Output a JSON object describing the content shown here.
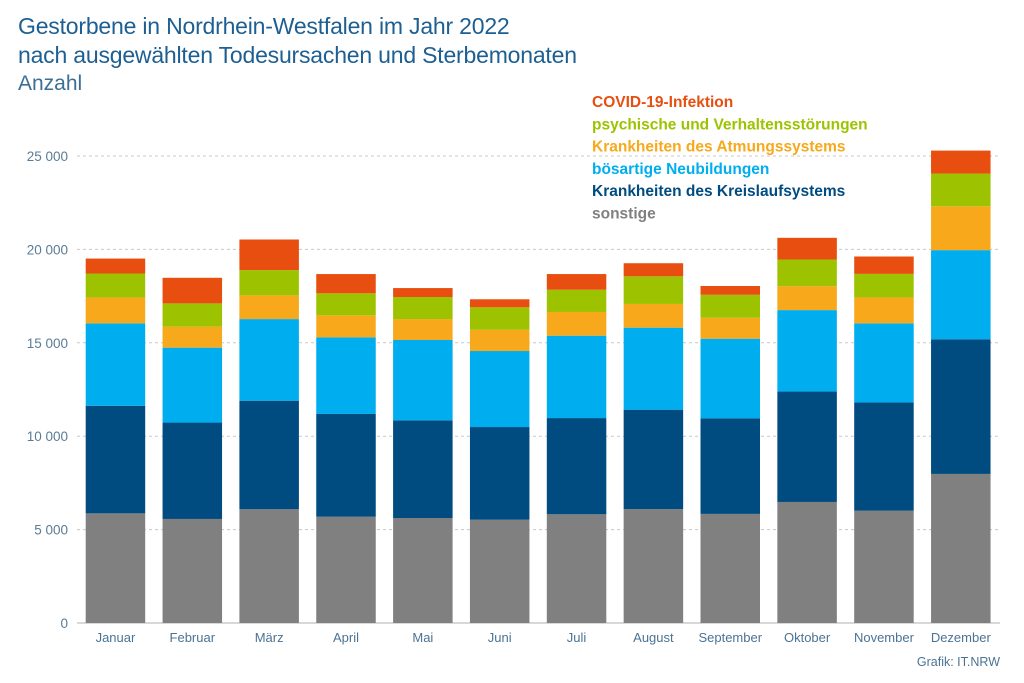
{
  "chart_data": {
    "type": "bar",
    "stacked": true,
    "title": "Gestorbene in Nordrhein-Westfalen im Jahr 2022",
    "title_line2": "nach ausgewählten Todesursachen und Sterbemonaten",
    "subtitle": "Anzahl",
    "xlabel": "",
    "ylabel": "Anzahl",
    "ylim": [
      0,
      25000
    ],
    "yticks": [
      0,
      5000,
      10000,
      15000,
      20000,
      25000
    ],
    "ytick_labels": [
      "0",
      "5 000",
      "10 000",
      "15 000",
      "20 000",
      "25 000"
    ],
    "grid": true,
    "legend_position": "top-right",
    "categories": [
      "Januar",
      "Februar",
      "März",
      "April",
      "Mai",
      "Juni",
      "Juli",
      "August",
      "September",
      "Oktober",
      "November",
      "Dezember"
    ],
    "series": [
      {
        "name": "sonstige",
        "color": "#808080",
        "values": [
          5870,
          5570,
          6090,
          5690,
          5620,
          5530,
          5820,
          6100,
          5840,
          6480,
          6010,
          7980
        ]
      },
      {
        "name": "Krankheiten des Kreislaufsystems",
        "color": "#004b80",
        "values": [
          5760,
          5160,
          5810,
          5500,
          5230,
          4960,
          5150,
          5320,
          5120,
          5910,
          5800,
          7210
        ]
      },
      {
        "name": "bösartige Neubildungen",
        "color": "#00aeef",
        "values": [
          4410,
          4010,
          4370,
          4100,
          4300,
          4070,
          4410,
          4390,
          4260,
          4360,
          4230,
          4770
        ]
      },
      {
        "name": "Krankheiten des Atmungssystems",
        "color": "#f7a81b",
        "values": [
          1390,
          1120,
          1270,
          1180,
          1120,
          1140,
          1270,
          1270,
          1120,
          1280,
          1390,
          2350
        ]
      },
      {
        "name": "psychische und Verhaltensstörungen",
        "color": "#9dc300",
        "values": [
          1280,
          1250,
          1350,
          1180,
          1180,
          1200,
          1190,
          1480,
          1230,
          1430,
          1260,
          1750
        ]
      },
      {
        "name": "COVID-19-Infektion",
        "color": "#e84e0f",
        "values": [
          800,
          1370,
          1640,
          1030,
          480,
          430,
          840,
          700,
          470,
          1160,
          930,
          1230
        ]
      }
    ],
    "legend_order": [
      "COVID-19-Infektion",
      "psychische und Verhaltensstörungen",
      "Krankheiten des Atmungssystems",
      "bösartige Neubildungen",
      "Krankheiten des Kreislaufsystems",
      "sonstige"
    ],
    "source": "Grafik: IT.NRW"
  },
  "colors": {
    "title": "#1d5f92",
    "axis_text": "#5b7c95",
    "grid": "#c8c8c8"
  }
}
